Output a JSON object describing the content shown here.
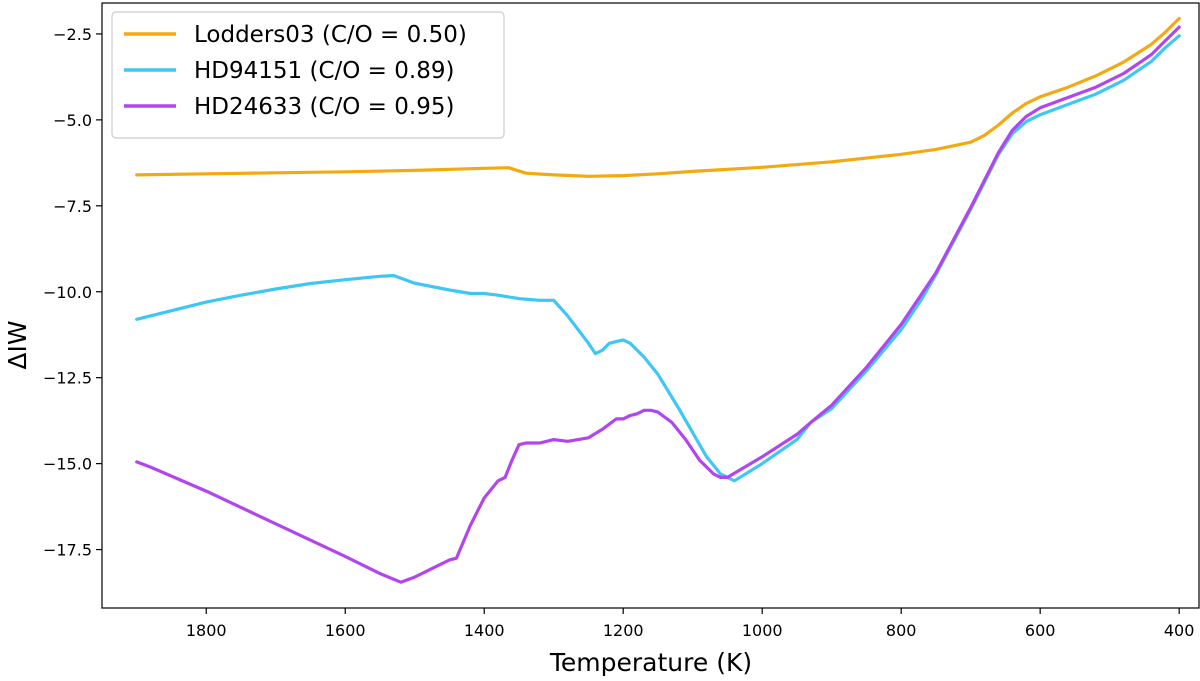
{
  "chart_data": {
    "type": "line",
    "xlabel": "Temperature (K)",
    "ylabel": "ΔIW",
    "xlim": [
      1950,
      370
    ],
    "ylim": [
      -19.2,
      -1.6
    ],
    "x_reversed": true,
    "grid": false,
    "legend_position": "top-left",
    "xticks": [
      {
        "value": 1800,
        "label": "1800"
      },
      {
        "value": 1600,
        "label": "1600"
      },
      {
        "value": 1400,
        "label": "1400"
      },
      {
        "value": 1200,
        "label": "1200"
      },
      {
        "value": 1000,
        "label": "1000"
      },
      {
        "value": 800,
        "label": "800"
      },
      {
        "value": 600,
        "label": "600"
      },
      {
        "value": 400,
        "label": "400"
      }
    ],
    "yticks": [
      {
        "value": -2.5,
        "label": "−2.5"
      },
      {
        "value": -5.0,
        "label": "−5.0"
      },
      {
        "value": -7.5,
        "label": "−7.5"
      },
      {
        "value": -10.0,
        "label": "−10.0"
      },
      {
        "value": -12.5,
        "label": "−12.5"
      },
      {
        "value": -15.0,
        "label": "−15.0"
      },
      {
        "value": -17.5,
        "label": "−17.5"
      }
    ],
    "series": [
      {
        "name": "Lodders03 (C/O = 0.50)",
        "color": "#f5a911",
        "x": [
          1900,
          1800,
          1700,
          1600,
          1500,
          1400,
          1365,
          1340,
          1300,
          1250,
          1200,
          1150,
          1100,
          1000,
          900,
          800,
          750,
          700,
          680,
          660,
          640,
          620,
          600,
          560,
          520,
          480,
          440,
          420,
          400
        ],
        "y": [
          -6.6,
          -6.57,
          -6.54,
          -6.51,
          -6.47,
          -6.41,
          -6.39,
          -6.55,
          -6.6,
          -6.64,
          -6.62,
          -6.57,
          -6.5,
          -6.38,
          -6.22,
          -6.0,
          -5.86,
          -5.65,
          -5.45,
          -5.15,
          -4.8,
          -4.52,
          -4.33,
          -4.05,
          -3.72,
          -3.32,
          -2.8,
          -2.45,
          -2.05
        ]
      },
      {
        "name": "HD94151 (C/O = 0.89)",
        "color": "#3ec6f4",
        "x": [
          1900,
          1850,
          1800,
          1750,
          1700,
          1650,
          1600,
          1550,
          1530,
          1500,
          1450,
          1420,
          1400,
          1380,
          1350,
          1320,
          1300,
          1280,
          1250,
          1240,
          1230,
          1220,
          1210,
          1200,
          1190,
          1170,
          1150,
          1120,
          1100,
          1080,
          1060,
          1045,
          1040,
          1000,
          950,
          930,
          900,
          850,
          800,
          770,
          750,
          700,
          660,
          640,
          620,
          600,
          560,
          520,
          480,
          440,
          420,
          400
        ],
        "y": [
          -10.8,
          -10.55,
          -10.3,
          -10.1,
          -9.92,
          -9.76,
          -9.65,
          -9.55,
          -9.53,
          -9.75,
          -9.95,
          -10.05,
          -10.05,
          -10.1,
          -10.2,
          -10.25,
          -10.25,
          -10.7,
          -11.5,
          -11.8,
          -11.7,
          -11.5,
          -11.45,
          -11.4,
          -11.5,
          -11.9,
          -12.4,
          -13.4,
          -14.1,
          -14.8,
          -15.3,
          -15.45,
          -15.5,
          -15.0,
          -14.3,
          -13.8,
          -13.4,
          -12.3,
          -11.1,
          -10.2,
          -9.5,
          -7.6,
          -6.0,
          -5.4,
          -5.05,
          -4.85,
          -4.55,
          -4.25,
          -3.85,
          -3.3,
          -2.9,
          -2.55
        ]
      },
      {
        "name": "HD24633 (C/O = 0.95)",
        "color": "#b146ef",
        "x": [
          1900,
          1880,
          1800,
          1700,
          1600,
          1550,
          1520,
          1500,
          1450,
          1440,
          1420,
          1400,
          1380,
          1370,
          1360,
          1350,
          1340,
          1320,
          1300,
          1280,
          1250,
          1230,
          1210,
          1200,
          1190,
          1180,
          1170,
          1160,
          1150,
          1130,
          1110,
          1090,
          1070,
          1060,
          1050,
          1000,
          950,
          930,
          900,
          850,
          800,
          770,
          750,
          700,
          660,
          640,
          620,
          600,
          560,
          520,
          480,
          440,
          420,
          400
        ],
        "y": [
          -14.95,
          -15.1,
          -15.8,
          -16.75,
          -17.7,
          -18.2,
          -18.45,
          -18.3,
          -17.8,
          -17.75,
          -16.8,
          -16.0,
          -15.5,
          -15.4,
          -14.9,
          -14.45,
          -14.4,
          -14.4,
          -14.3,
          -14.35,
          -14.25,
          -14.0,
          -13.7,
          -13.7,
          -13.6,
          -13.55,
          -13.45,
          -13.45,
          -13.5,
          -13.8,
          -14.3,
          -14.9,
          -15.3,
          -15.4,
          -15.4,
          -14.8,
          -14.15,
          -13.8,
          -13.3,
          -12.2,
          -10.95,
          -10.05,
          -9.45,
          -7.55,
          -5.95,
          -5.3,
          -4.9,
          -4.65,
          -4.35,
          -4.05,
          -3.65,
          -3.1,
          -2.7,
          -2.3
        ]
      }
    ]
  }
}
